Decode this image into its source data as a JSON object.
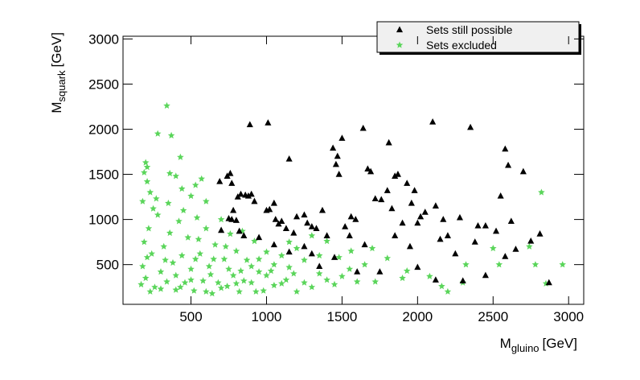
{
  "chart_data": {
    "type": "scatter",
    "x_label": {
      "main": "M",
      "sub": "gluino",
      "unit": "[GeV]"
    },
    "y_label": {
      "main": "M",
      "sub": "squark",
      "unit": "[GeV]"
    },
    "xlim": [
      50,
      3100
    ],
    "ylim": [
      60,
      3030
    ],
    "xticks": [
      500,
      1000,
      1500,
      2000,
      2500,
      3000
    ],
    "yticks": [
      500,
      1000,
      1500,
      2000,
      2500,
      3000
    ],
    "legend": "top-right",
    "series": [
      {
        "name": "Sets still possible",
        "color": "#000000",
        "marker": "triangle",
        "x": [
          690,
          740,
          760,
          770,
          780,
          750,
          770,
          800,
          810,
          830,
          860,
          880,
          900,
          890,
          920,
          1010,
          1000,
          1020,
          1050,
          1060,
          1080,
          1100,
          1150,
          1130,
          1180,
          1200,
          1250,
          1270,
          1300,
          1330,
          1370,
          1400,
          1440,
          1470,
          1460,
          1500,
          1480,
          1520,
          1560,
          1590,
          1640,
          1670,
          1690,
          1720,
          1760,
          1800,
          1810,
          1830,
          1850,
          1870,
          1900,
          1930,
          1960,
          1980,
          2000,
          2020,
          2050,
          2100,
          2120,
          2150,
          2170,
          2200,
          2280,
          2350,
          2380,
          2400,
          2450,
          2520,
          2550,
          2580,
          2600,
          2620,
          2700,
          2750,
          2810,
          2870,
          2580,
          2450,
          2300,
          2120,
          1850,
          1650,
          1750,
          1600,
          1450,
          1350,
          1250,
          1150,
          1050,
          950,
          850,
          700,
          820,
          2000,
          2250,
          2650,
          1950,
          1550,
          1300
        ],
        "values": [
          1420,
          1480,
          1510,
          1400,
          1100,
          1010,
          1000,
          990,
          1250,
          1280,
          1270,
          1260,
          1280,
          2050,
          1200,
          2070,
          1100,
          1110,
          1180,
          1000,
          950,
          980,
          1670,
          900,
          850,
          1030,
          1050,
          960,
          920,
          900,
          1100,
          820,
          1790,
          1700,
          1610,
          1900,
          1500,
          920,
          1030,
          1000,
          2010,
          1560,
          1530,
          1230,
          1220,
          1320,
          1850,
          1120,
          1480,
          1500,
          960,
          1400,
          1180,
          1320,
          960,
          1030,
          1080,
          2080,
          1150,
          780,
          1000,
          820,
          1020,
          2020,
          750,
          930,
          930,
          870,
          1260,
          1780,
          1600,
          980,
          1530,
          760,
          840,
          300,
          590,
          380,
          320,
          330,
          820,
          720,
          420,
          420,
          580,
          480,
          700,
          640,
          720,
          800,
          820,
          880,
          870,
          470,
          620,
          670,
          700,
          820,
          620
        ]
      },
      {
        "name": "Sets excluded",
        "color": "#5ad55a",
        "marker": "star",
        "x": [
          340,
          280,
          370,
          430,
          200,
          210,
          190,
          360,
          400,
          210,
          530,
          570,
          600,
          500,
          440,
          270,
          230,
          180,
          2820,
          2960,
          2780,
          2850,
          2740,
          2540,
          2320,
          2500,
          2300,
          2200,
          2080,
          2160,
          1900,
          1930,
          1720,
          1800,
          1700,
          1550,
          1560,
          1480,
          1400,
          1350,
          1300,
          1250,
          1200,
          1150,
          1180,
          1100,
          1050,
          1000,
          980,
          950,
          920,
          900,
          870,
          840,
          820,
          800,
          780,
          760,
          740,
          720,
          700,
          680,
          660,
          640,
          620,
          600,
          580,
          560,
          540,
          520,
          500,
          480,
          460,
          440,
          420,
          400,
          380,
          360,
          340,
          320,
          300,
          280,
          260,
          240,
          220,
          200,
          190,
          180,
          170,
          250,
          350,
          450,
          550,
          650,
          750,
          850,
          950,
          1050,
          1150,
          1250,
          1350,
          1450,
          1500,
          1600,
          1650,
          1400,
          1300,
          1200,
          1100,
          1000,
          900,
          800,
          700,
          600,
          500,
          400,
          300,
          210,
          230,
          330,
          430,
          530,
          630,
          730,
          830,
          930,
          1030,
          1130
        ],
        "values": [
          2260,
          1950,
          1930,
          1690,
          1630,
          1580,
          1520,
          1510,
          1480,
          1420,
          1380,
          1450,
          1200,
          1260,
          1340,
          1230,
          1300,
          1200,
          1300,
          500,
          500,
          290,
          700,
          500,
          500,
          680,
          300,
          200,
          370,
          260,
          350,
          430,
          310,
          570,
          680,
          450,
          650,
          580,
          760,
          400,
          820,
          550,
          680,
          750,
          400,
          290,
          500,
          640,
          210,
          420,
          760,
          300,
          550,
          870,
          200,
          650,
          380,
          840,
          260,
          560,
          1000,
          300,
          720,
          180,
          480,
          900,
          320,
          620,
          1020,
          210,
          450,
          800,
          300,
          600,
          980,
          220,
          520,
          850,
          310,
          700,
          420,
          1050,
          250,
          620,
          900,
          350,
          750,
          480,
          280,
          1120,
          1180,
          1100,
          780,
          560,
          450,
          320,
          560,
          270,
          470,
          300,
          600,
          280,
          370,
          310,
          500,
          330,
          250,
          200,
          600,
          380,
          480,
          290,
          240,
          200,
          330,
          380,
          230,
          580,
          200,
          550,
          250,
          560,
          390,
          700,
          430,
          200,
          430,
          330
        ]
      }
    ]
  }
}
